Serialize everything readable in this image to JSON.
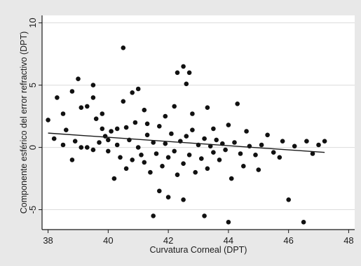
{
  "chart_data": {
    "type": "scatter",
    "title": "",
    "xlabel": "Curvatura Corneal (DPT)",
    "ylabel": "Componente esférico del error refractivo (DPT)",
    "xlim": [
      37.8,
      48.2
    ],
    "ylim": [
      -6.6,
      10.6
    ],
    "x_ticks": [
      38,
      40,
      42,
      44,
      46,
      48
    ],
    "y_ticks": [
      -5,
      0,
      5,
      10
    ],
    "x_tick_labels": [
      "38",
      "40",
      "42",
      "44",
      "46",
      "48"
    ],
    "y_tick_labels": [
      "-5",
      "0",
      "5",
      "10"
    ],
    "grid": "horizontal",
    "legend": "none",
    "colors": {
      "points": "#111111",
      "fit_line": "#1a1a1a",
      "plot_bg": "#ffffff",
      "outer_bg": "#e8e8e8",
      "grid": "#dcdcdc"
    },
    "fit_line": {
      "x": [
        38,
        47.2
      ],
      "y": [
        1.15,
        -0.4
      ]
    },
    "points": [
      [
        38.0,
        2.2
      ],
      [
        38.2,
        0.7
      ],
      [
        38.3,
        4.0
      ],
      [
        38.5,
        2.7
      ],
      [
        38.6,
        1.4
      ],
      [
        38.5,
        0.2
      ],
      [
        38.8,
        4.5
      ],
      [
        38.8,
        -1.0
      ],
      [
        38.9,
        0.5
      ],
      [
        39.0,
        5.5
      ],
      [
        39.1,
        3.2
      ],
      [
        39.1,
        0.0
      ],
      [
        39.3,
        3.3
      ],
      [
        39.5,
        5.0
      ],
      [
        39.5,
        4.0
      ],
      [
        39.6,
        2.3
      ],
      [
        39.8,
        1.5
      ],
      [
        39.8,
        2.7
      ],
      [
        40.0,
        0.6
      ],
      [
        40.2,
        -2.5
      ],
      [
        40.3,
        1.5
      ],
      [
        40.5,
        8.0
      ],
      [
        40.5,
        3.7
      ],
      [
        40.6,
        1.6
      ],
      [
        40.8,
        4.4
      ],
      [
        41.0,
        4.7
      ],
      [
        41.2,
        3.0
      ],
      [
        41.3,
        1.9
      ],
      [
        41.5,
        -5.5
      ],
      [
        41.7,
        -3.5
      ],
      [
        41.9,
        2.5
      ],
      [
        42.0,
        -4.0
      ],
      [
        42.2,
        3.3
      ],
      [
        42.3,
        6.0
      ],
      [
        42.5,
        6.5
      ],
      [
        42.6,
        5.1
      ],
      [
        42.5,
        -4.2
      ],
      [
        42.7,
        6.0
      ],
      [
        42.8,
        2.7
      ],
      [
        43.2,
        -5.5
      ],
      [
        43.3,
        3.2
      ],
      [
        43.5,
        1.5
      ],
      [
        44.0,
        -6.0
      ],
      [
        44.0,
        1.8
      ],
      [
        44.1,
        -2.5
      ],
      [
        44.3,
        3.5
      ],
      [
        44.5,
        -1.5
      ],
      [
        44.6,
        1.3
      ],
      [
        45.0,
        -1.8
      ],
      [
        45.3,
        1.0
      ],
      [
        45.8,
        0.5
      ],
      [
        46.0,
        -4.2
      ],
      [
        46.5,
        -6.0
      ],
      [
        46.6,
        0.5
      ],
      [
        47.0,
        0.2
      ],
      [
        47.2,
        0.5
      ],
      [
        39.3,
        0.0
      ],
      [
        39.5,
        -0.2
      ],
      [
        39.7,
        0.4
      ],
      [
        39.9,
        0.9
      ],
      [
        40.0,
        -0.3
      ],
      [
        40.1,
        1.3
      ],
      [
        40.3,
        0.2
      ],
      [
        40.4,
        -0.8
      ],
      [
        40.6,
        -1.7
      ],
      [
        40.7,
        0.6
      ],
      [
        40.8,
        -1.0
      ],
      [
        40.9,
        2.0
      ],
      [
        41.0,
        0.0
      ],
      [
        41.1,
        -0.6
      ],
      [
        41.2,
        -1.2
      ],
      [
        41.3,
        1.0
      ],
      [
        41.4,
        -2.0
      ],
      [
        41.5,
        0.4
      ],
      [
        41.6,
        -0.5
      ],
      [
        41.7,
        1.7
      ],
      [
        41.8,
        -1.5
      ],
      [
        41.9,
        0.3
      ],
      [
        42.0,
        -0.8
      ],
      [
        42.1,
        1.1
      ],
      [
        42.2,
        -0.3
      ],
      [
        42.3,
        -2.2
      ],
      [
        42.4,
        0.5
      ],
      [
        42.5,
        -1.3
      ],
      [
        42.6,
        0.9
      ],
      [
        42.7,
        -0.6
      ],
      [
        42.8,
        1.4
      ],
      [
        42.9,
        -2.0
      ],
      [
        43.0,
        0.2
      ],
      [
        43.1,
        -0.9
      ],
      [
        43.2,
        0.7
      ],
      [
        43.3,
        -1.7
      ],
      [
        43.4,
        0.1
      ],
      [
        43.5,
        -0.4
      ],
      [
        43.6,
        0.6
      ],
      [
        43.7,
        -1.0
      ],
      [
        43.8,
        0.3
      ],
      [
        43.9,
        -0.2
      ],
      [
        44.2,
        0.4
      ],
      [
        44.4,
        -0.5
      ],
      [
        44.7,
        0.1
      ],
      [
        44.9,
        -0.6
      ],
      [
        45.1,
        0.2
      ],
      [
        45.5,
        -0.4
      ],
      [
        45.7,
        -0.8
      ],
      [
        46.2,
        0.1
      ],
      [
        46.8,
        -0.5
      ]
    ]
  }
}
